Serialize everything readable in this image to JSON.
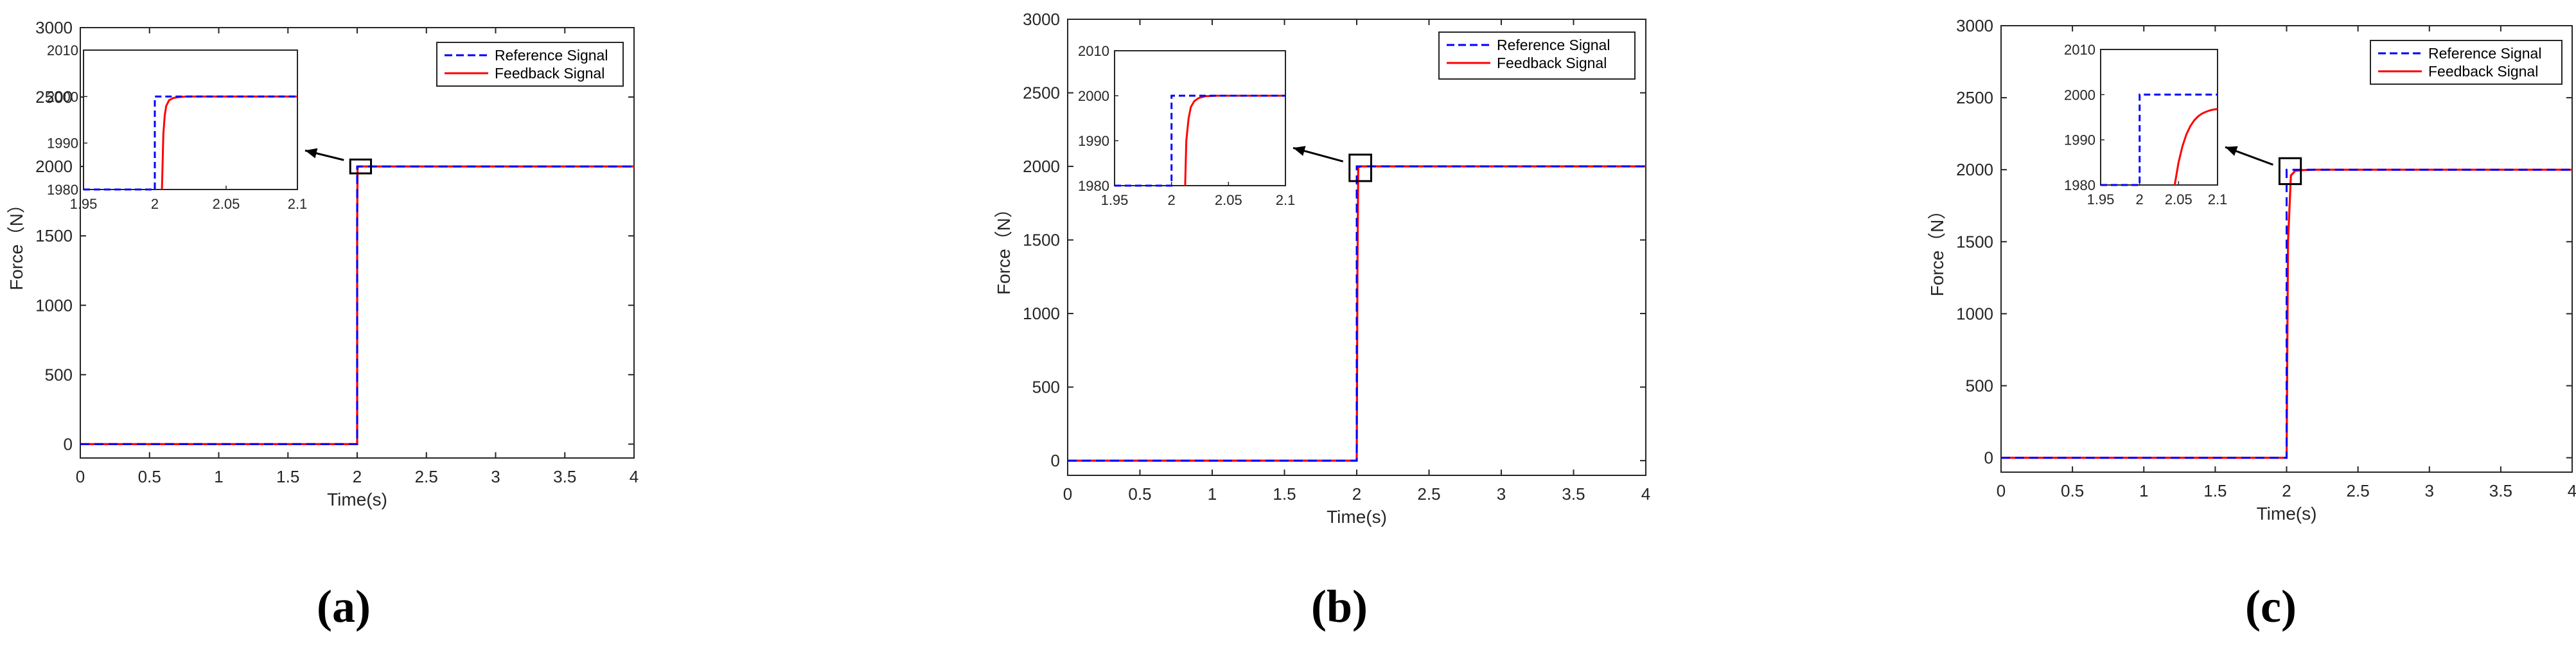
{
  "chart_data": [
    {
      "type": "line",
      "panel_label": "(a)",
      "xlabel": "Time(s)",
      "ylabel": "Force（N）",
      "xlim": [
        0,
        4
      ],
      "ylim": [
        -100,
        3000
      ],
      "xticks": [
        0,
        0.5,
        1,
        1.5,
        2,
        2.5,
        3,
        3.5,
        4
      ],
      "yticks": [
        0,
        500,
        1000,
        1500,
        2000,
        2500,
        3000
      ],
      "legend_position": "top-right",
      "series": [
        {
          "name": "Reference Signal",
          "color": "#0000ff",
          "style": "dashed",
          "x": [
            0,
            2,
            2,
            4
          ],
          "y": [
            0,
            0,
            2000,
            2000
          ]
        },
        {
          "name": "Feedback Signal",
          "color": "#ff0000",
          "style": "solid",
          "x": [
            0,
            2,
            2,
            2.003,
            2.006,
            2.01,
            2.015,
            2.02,
            4
          ],
          "y": [
            0,
            0,
            1600,
            1985,
            1997,
            1999.5,
            2000,
            2000,
            2000
          ]
        }
      ],
      "zoom_box": {
        "x": [
          1.95,
          2.1
        ],
        "y": [
          1950,
          2050
        ]
      },
      "inset": {
        "xlim": [
          1.95,
          2.1
        ],
        "ylim": [
          1980,
          2010
        ],
        "xticks": [
          1.95,
          2,
          2.05,
          2.1
        ],
        "yticks": [
          1980,
          1990,
          2000,
          2010
        ],
        "series": [
          {
            "name": "Reference Signal",
            "x": [
              1.95,
              2,
              2,
              2.1
            ],
            "y": [
              1980,
              1980,
              2000,
              2000
            ]
          },
          {
            "name": "Feedback Signal",
            "x": [
              2.005,
              2.006,
              2.007,
              2.008,
              2.01,
              2.013,
              2.017,
              2.022,
              2.03,
              2.1
            ],
            "y": [
              1980,
              1992,
              1996,
              1998,
              1999.2,
              1999.7,
              1999.9,
              2000,
              2000,
              2000
            ]
          }
        ]
      }
    },
    {
      "type": "line",
      "panel_label": "(b)",
      "xlabel": "Time(s)",
      "ylabel": "Force（N）",
      "xlim": [
        0,
        4
      ],
      "ylim": [
        -100,
        3000
      ],
      "xticks": [
        0,
        0.5,
        1,
        1.5,
        2,
        2.5,
        3,
        3.5,
        4
      ],
      "yticks": [
        0,
        500,
        1000,
        1500,
        2000,
        2500,
        3000
      ],
      "legend_position": "top-right",
      "series": [
        {
          "name": "Reference Signal",
          "color": "#0000ff",
          "style": "dashed",
          "x": [
            0,
            2,
            2,
            4
          ],
          "y": [
            0,
            0,
            2000,
            2000
          ]
        },
        {
          "name": "Feedback Signal",
          "color": "#ff0000",
          "style": "solid",
          "x": [
            0,
            2,
            2.005,
            2.01,
            2.02,
            2.03,
            2.04,
            4
          ],
          "y": [
            0,
            0,
            1300,
            1990,
            1998,
            1999.7,
            2000,
            2000
          ]
        }
      ],
      "zoom_box": {
        "x": [
          1.95,
          2.1
        ],
        "y": [
          1900,
          2080
        ]
      },
      "inset": {
        "xlim": [
          1.95,
          2.1
        ],
        "ylim": [
          1980,
          2010
        ],
        "xticks": [
          1.95,
          2,
          2.05,
          2.1
        ],
        "yticks": [
          1980,
          1990,
          2000,
          2010
        ],
        "series": [
          {
            "name": "Reference Signal",
            "x": [
              1.95,
              2,
              2,
              2.1
            ],
            "y": [
              1980,
              1980,
              2000,
              2000
            ]
          },
          {
            "name": "Feedback Signal",
            "x": [
              2.012,
              2.013,
              2.015,
              2.017,
              2.02,
              2.024,
              2.03,
              2.04,
              2.1
            ],
            "y": [
              1980,
              1990,
              1995,
              1997.5,
              1998.8,
              1999.5,
              1999.9,
              2000,
              2000
            ]
          }
        ]
      }
    },
    {
      "type": "line",
      "panel_label": "(c)",
      "xlabel": "Time(s)",
      "ylabel": "Force（N）",
      "xlim": [
        0,
        4
      ],
      "ylim": [
        -100,
        3000
      ],
      "xticks": [
        0,
        0.5,
        1,
        1.5,
        2,
        2.5,
        3,
        3.5,
        4
      ],
      "yticks": [
        0,
        500,
        1000,
        1500,
        2000,
        2500,
        3000
      ],
      "legend_position": "top-right",
      "series": [
        {
          "name": "Reference Signal",
          "color": "#0000ff",
          "style": "dashed",
          "x": [
            0,
            2,
            2,
            4
          ],
          "y": [
            0,
            0,
            2000,
            2000
          ]
        },
        {
          "name": "Feedback Signal",
          "color": "#ff0000",
          "style": "solid",
          "x": [
            0,
            2,
            2.01,
            2.03,
            2.06,
            2.1,
            2.2,
            4
          ],
          "y": [
            0,
            0,
            1500,
            1960,
            1992,
            1997,
            1999.8,
            2000
          ]
        }
      ],
      "zoom_box": {
        "x": [
          1.95,
          2.1
        ],
        "y": [
          1900,
          2080
        ]
      },
      "inset": {
        "xlim": [
          1.95,
          2.1
        ],
        "ylim": [
          1980,
          2010
        ],
        "xticks": [
          1.95,
          2,
          2.05,
          2.1
        ],
        "yticks": [
          1980,
          1990,
          2000,
          2010
        ],
        "series": [
          {
            "name": "Reference Signal",
            "x": [
              1.95,
              2,
              2,
              2.1
            ],
            "y": [
              1980,
              1980,
              2000,
              2000
            ]
          },
          {
            "name": "Feedback Signal",
            "x": [
              2.045,
              2.05,
              2.055,
              2.06,
              2.065,
              2.07,
              2.075,
              2.08,
              2.085,
              2.09,
              2.095,
              2.1
            ],
            "y": [
              1980,
              1985,
              1988.6,
              1991.2,
              1993,
              1994.3,
              1995.2,
              1995.8,
              1996.2,
              1996.5,
              1996.7,
              1996.8
            ]
          }
        ]
      }
    }
  ]
}
